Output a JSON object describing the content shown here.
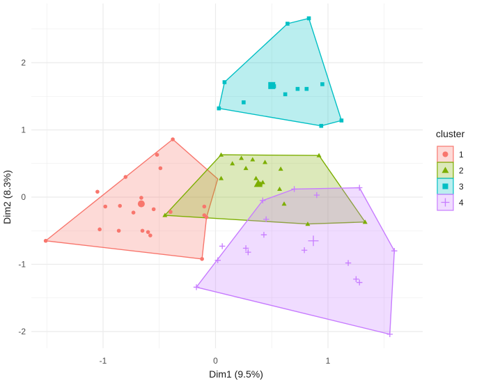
{
  "chart_data": {
    "type": "scatter",
    "xlabel": "Dim1 (9.5%)",
    "ylabel": "Dim2 (8.3%)",
    "xlim": [
      -1.6,
      1.7
    ],
    "ylim": [
      -2.1,
      2.75
    ],
    "xticks": [
      -1,
      0,
      1
    ],
    "yticks": [
      -2,
      -1,
      0,
      1,
      2
    ],
    "grid": true,
    "legend": {
      "title": "cluster",
      "placement": "right"
    },
    "series": [
      {
        "name": "1",
        "color": "#F8766D",
        "marker": "circle",
        "points": [
          [
            -0.38,
            0.86
          ],
          [
            -0.52,
            0.63
          ],
          [
            -0.49,
            0.43
          ],
          [
            -0.8,
            0.3
          ],
          [
            -1.05,
            0.08
          ],
          [
            -0.66,
            -0.01
          ],
          [
            -0.85,
            -0.13
          ],
          [
            -0.55,
            -0.18
          ],
          [
            -0.08,
            -0.3
          ],
          [
            -0.1,
            -0.27
          ],
          [
            -0.1,
            -0.14
          ],
          [
            -0.98,
            -0.14
          ],
          [
            -0.73,
            -0.23
          ],
          [
            -0.4,
            -0.22
          ],
          [
            -0.86,
            -0.5
          ],
          [
            -0.65,
            -0.5
          ],
          [
            -1.03,
            -0.48
          ],
          [
            -0.6,
            -0.52
          ],
          [
            -0.58,
            -0.57
          ],
          [
            -0.12,
            -0.92
          ],
          [
            -1.51,
            -0.65
          ]
        ],
        "centroid": [
          -0.66,
          -0.1
        ],
        "hull": [
          [
            -0.38,
            0.86
          ],
          [
            0.02,
            0.27
          ],
          [
            -0.08,
            -0.3
          ],
          [
            -0.12,
            -0.92
          ],
          [
            -1.51,
            -0.65
          ]
        ]
      },
      {
        "name": "2",
        "color": "#7CAE00",
        "marker": "triangle",
        "points": [
          [
            0.05,
            0.63
          ],
          [
            0.23,
            0.58
          ],
          [
            0.05,
            0.28
          ],
          [
            0.15,
            0.5
          ],
          [
            0.27,
            0.43
          ],
          [
            0.33,
            0.56
          ],
          [
            0.44,
            0.52
          ],
          [
            0.58,
            0.42
          ],
          [
            0.36,
            0.28
          ],
          [
            0.42,
            0.22
          ],
          [
            0.4,
            0.2
          ],
          [
            0.57,
            0.12
          ],
          [
            0.61,
            -0.1
          ],
          [
            0.92,
            0.62
          ],
          [
            0.82,
            -0.4
          ],
          [
            1.33,
            -0.37
          ],
          [
            -0.45,
            -0.27
          ]
        ],
        "centroid": [
          0.38,
          0.2
        ],
        "hull": [
          [
            0.05,
            0.63
          ],
          [
            0.92,
            0.62
          ],
          [
            1.33,
            -0.37
          ],
          [
            0.82,
            -0.4
          ],
          [
            -0.45,
            -0.27
          ]
        ]
      },
      {
        "name": "3",
        "color": "#00BFC4",
        "marker": "square",
        "points": [
          [
            0.64,
            2.58
          ],
          [
            0.83,
            2.66
          ],
          [
            0.08,
            1.71
          ],
          [
            0.62,
            1.53
          ],
          [
            0.25,
            1.41
          ],
          [
            0.52,
            1.65
          ],
          [
            0.73,
            1.61
          ],
          [
            0.81,
            1.61
          ],
          [
            0.95,
            1.68
          ],
          [
            0.03,
            1.32
          ],
          [
            0.94,
            1.06
          ],
          [
            1.12,
            1.14
          ]
        ],
        "centroid": [
          0.5,
          1.66
        ],
        "hull": [
          [
            0.64,
            2.58
          ],
          [
            0.83,
            2.66
          ],
          [
            1.12,
            1.14
          ],
          [
            0.94,
            1.06
          ],
          [
            0.03,
            1.32
          ],
          [
            0.08,
            1.71
          ]
        ]
      },
      {
        "name": "4",
        "color": "#C77CFF",
        "marker": "plus",
        "points": [
          [
            0.7,
            0.12
          ],
          [
            0.42,
            -0.05
          ],
          [
            0.9,
            0.03
          ],
          [
            1.28,
            0.14
          ],
          [
            0.45,
            -0.33
          ],
          [
            0.43,
            -0.56
          ],
          [
            0.06,
            -0.73
          ],
          [
            0.79,
            -0.79
          ],
          [
            0.27,
            -0.76
          ],
          [
            0.29,
            -0.82
          ],
          [
            0.02,
            -0.94
          ],
          [
            1.18,
            -0.98
          ],
          [
            1.25,
            -1.22
          ],
          [
            1.28,
            -1.27
          ],
          [
            1.59,
            -0.8
          ],
          [
            1.55,
            -2.04
          ],
          [
            -0.17,
            -1.34
          ]
        ],
        "centroid": [
          0.87,
          -0.65
        ],
        "hull": [
          [
            0.7,
            0.12
          ],
          [
            1.28,
            0.14
          ],
          [
            1.59,
            -0.8
          ],
          [
            1.55,
            -2.04
          ],
          [
            -0.17,
            -1.34
          ],
          [
            0.42,
            -0.05
          ]
        ]
      }
    ]
  }
}
